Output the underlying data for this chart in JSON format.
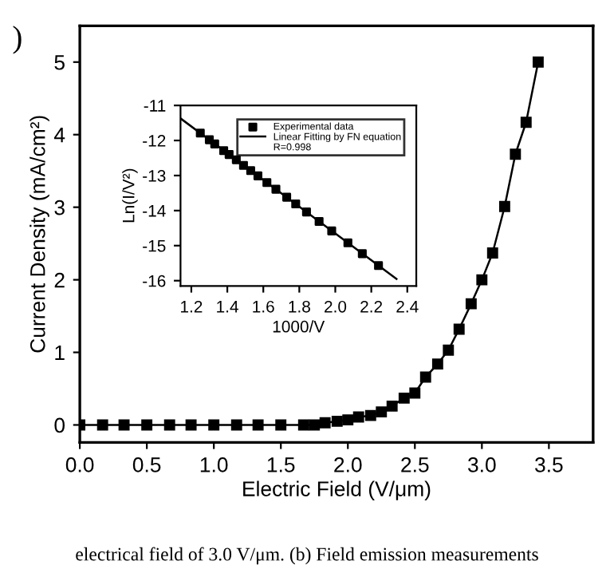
{
  "chart_data": [
    {
      "type": "line",
      "xlabel": "Electric Field (V/μm)",
      "ylabel": "Current Density (mA/cm²)",
      "marker": "square",
      "line_style": "solid",
      "grid": false,
      "legend": false,
      "annotations": [
        ")",
        "electrical field of 3.0 V/μm. (b) Field emission measurements"
      ],
      "x": [
        0,
        0.17,
        0.33,
        0.5,
        0.67,
        0.83,
        1.0,
        1.17,
        1.33,
        1.5,
        1.67,
        1.75,
        1.83,
        1.92,
        2.0,
        2.08,
        2.17,
        2.25,
        2.33,
        2.42,
        2.5,
        2.58,
        2.67,
        2.75,
        2.83,
        2.92,
        3.0,
        3.08,
        3.17,
        3.25,
        3.33,
        3.42
      ],
      "series": [
        {
          "color": "#000000",
          "values": [
            0,
            0,
            0,
            0,
            0,
            0,
            0,
            0,
            0,
            0,
            0,
            0,
            0.03,
            0.05,
            0.07,
            0.11,
            0.13,
            0.18,
            0.26,
            0.37,
            0.44,
            0.66,
            0.84,
            1.03,
            1.32,
            1.67,
            2.0,
            2.37,
            3.01,
            3.73,
            4.17,
            5.0
          ]
        }
      ],
      "xlim": [
        0,
        3.83
      ],
      "ylim": [
        -0.24,
        5.5
      ],
      "xticks": [
        {
          "value": 0,
          "label": "0.0"
        },
        0.5,
        {
          "value": 1,
          "label": "1.0"
        },
        1.5,
        {
          "value": 2,
          "label": "2.0"
        },
        2.5,
        {
          "value": 3,
          "label": "3.0"
        },
        3.5
      ],
      "yticks": [
        0,
        1,
        2,
        3,
        4,
        5
      ]
    },
    {
      "type": "scatter",
      "xlabel": "1000/V",
      "ylabel": "Ln(I/V²)",
      "grid": false,
      "legend": "top right",
      "annotations": [
        "R=0.998"
      ],
      "series": [
        {
          "name": "Experimental data",
          "type": "scatter",
          "marker": "square",
          "color": "#000000",
          "x": [
            1.25,
            1.3,
            1.33,
            1.38,
            1.41,
            1.45,
            1.49,
            1.53,
            1.57,
            1.62,
            1.67,
            1.73,
            1.78,
            1.84,
            1.91,
            1.98,
            2.07,
            2.15,
            2.24
          ],
          "values": [
            -11.79,
            -11.98,
            -12.1,
            -12.29,
            -12.4,
            -12.55,
            -12.71,
            -12.86,
            -13.01,
            -13.2,
            -13.39,
            -13.62,
            -13.81,
            -14.04,
            -14.31,
            -14.58,
            -14.92,
            -15.23,
            -15.57
          ]
        },
        {
          "name": "Linear Fitting by FN equation",
          "type": "line",
          "marker": "none",
          "color": "#000000",
          "x": [
            1.14,
            2.34
          ],
          "values": [
            -11.37,
            -15.95
          ]
        }
      ],
      "xlim": [
        1.14,
        2.45
      ],
      "ylim": [
        -16.15,
        -11
      ],
      "xticks": [
        1.2,
        1.4,
        1.6,
        1.8,
        {
          "value": 2.0,
          "label": "2.0"
        },
        2.2,
        2.4
      ],
      "yticks": [
        -11,
        -12,
        -13,
        -14,
        -15,
        -16
      ]
    }
  ]
}
